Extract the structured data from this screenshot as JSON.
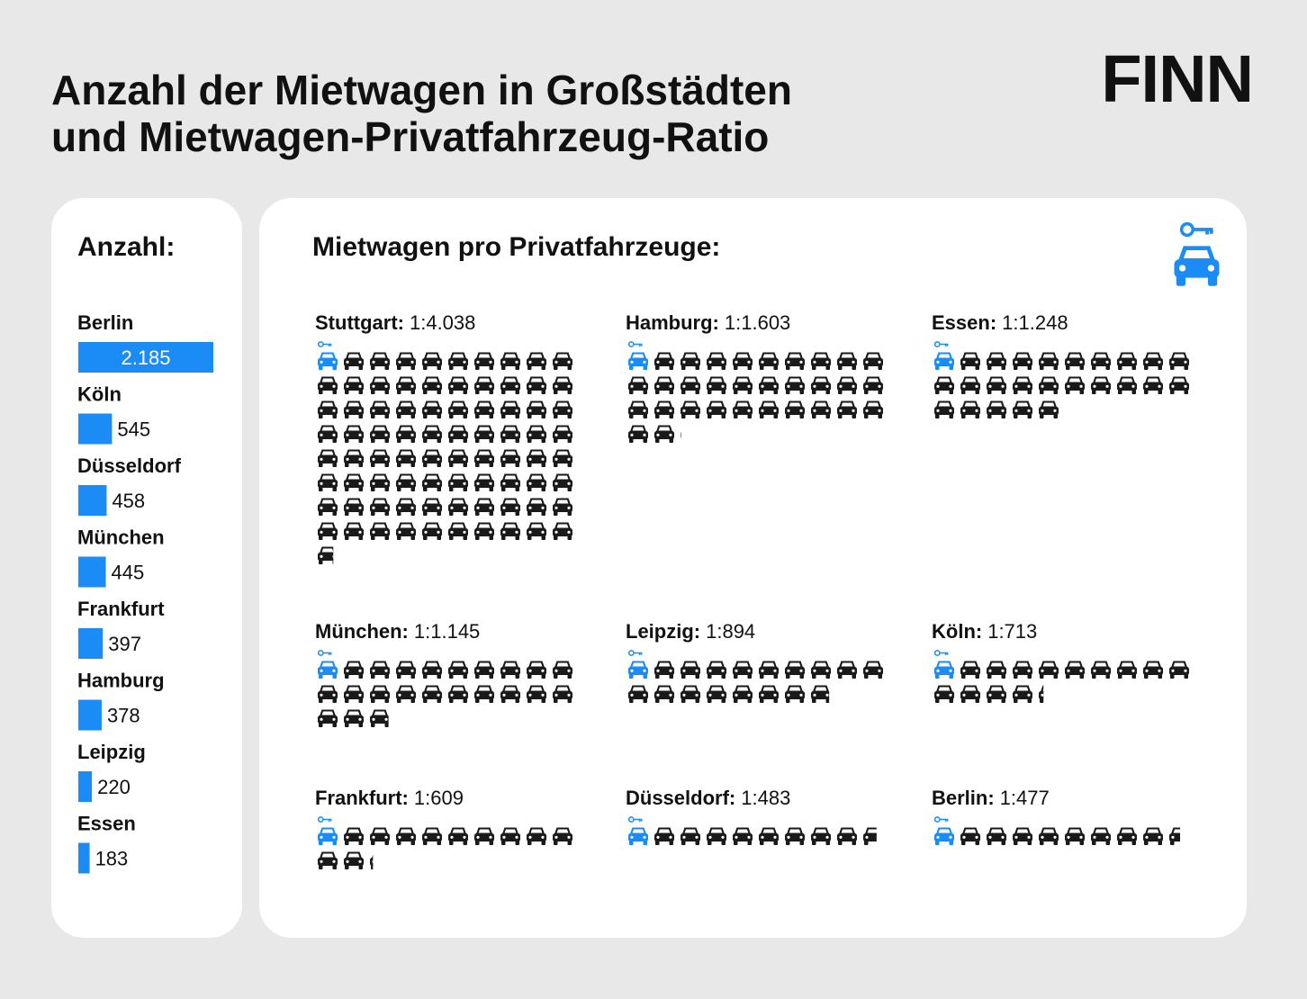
{
  "title": [
    "Anzahl der Mietwagen in Großstädten",
    "und Mietwagen-Privatfahrzeug-Ratio"
  ],
  "logo": "FINN",
  "chart_data": [
    {
      "type": "bar",
      "title": "Anzahl:",
      "categories": [
        "Berlin",
        "Köln",
        "Düsseldorf",
        "München",
        "Frankfurt",
        "Hamburg",
        "Leipzig",
        "Essen"
      ],
      "values": [
        2185,
        545,
        458,
        445,
        397,
        378,
        220,
        183
      ],
      "value_labels": [
        "2.185",
        "545",
        "458",
        "445",
        "397",
        "378",
        "220",
        "183"
      ],
      "color": "#1b8cf5"
    },
    {
      "type": "pictogram",
      "title": "Mietwagen pro Privatfahrzeuge:",
      "categories": [
        "Stuttgart:",
        "Hamburg:",
        "Essen:",
        "München:",
        "Leipzig:",
        "Köln:",
        "Frankfurt:",
        "Düsseldorf:",
        "Berlin:"
      ],
      "values": [
        4038,
        1603,
        1248,
        1145,
        894,
        713,
        609,
        483,
        477
      ],
      "value_labels": [
        "1:4.038",
        "1:1.603",
        "1:1.248",
        "1:1.145",
        "1:894",
        "1:713",
        "1:609",
        "1:483",
        "1:477"
      ],
      "color": "#1b8cf5"
    }
  ]
}
